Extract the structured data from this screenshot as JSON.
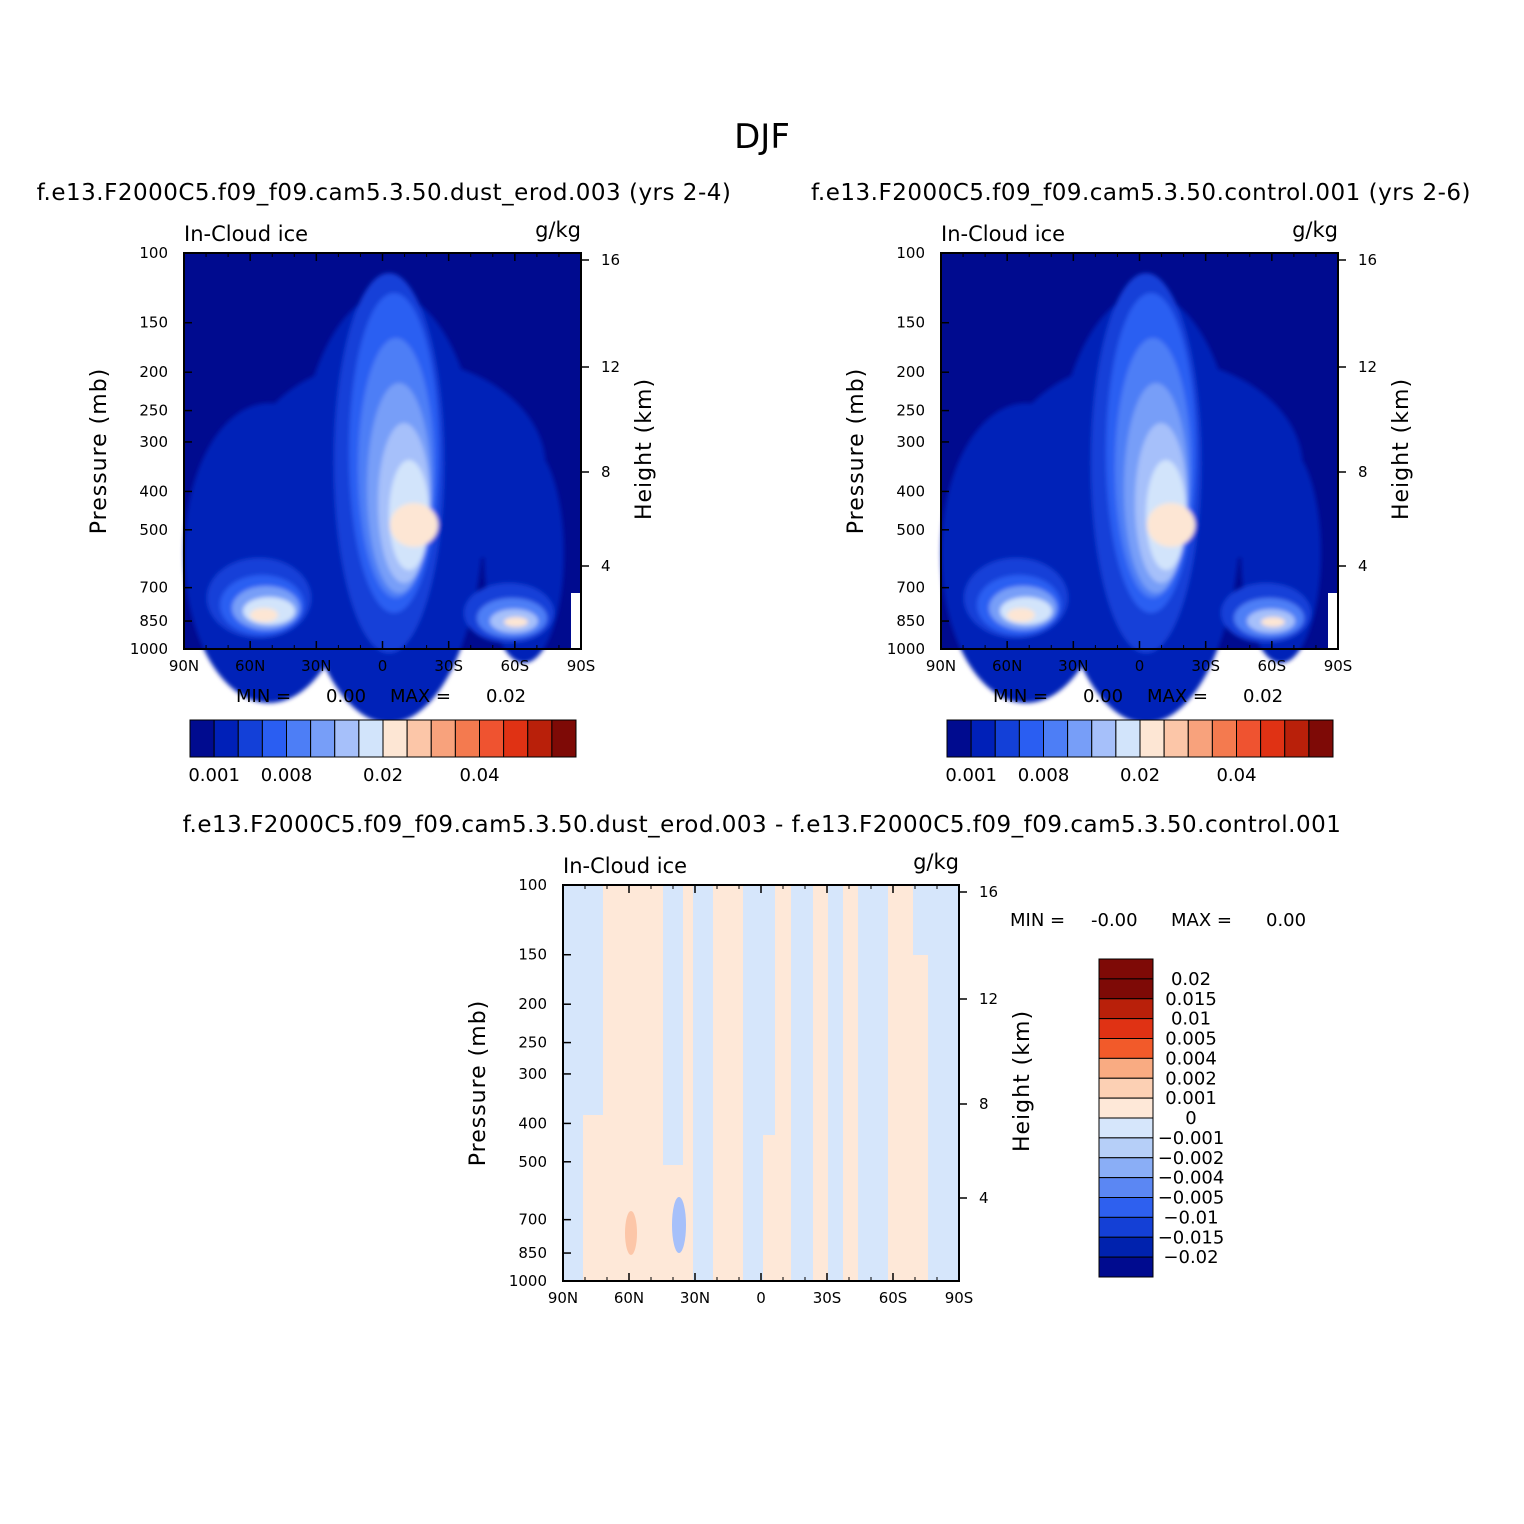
{
  "figure": {
    "title": "DJF"
  },
  "panels": [
    {
      "case": "f.e13.F2000C5.f09_f09.cam5.3.50.dust_erod.003 (yrs 2-4)",
      "var": "In-Cloud ice",
      "units": "g/kg",
      "ylabel": "Pressure (mb)",
      "y2label": "Height (km)",
      "min_label": "MIN =",
      "min_value": "0.00",
      "max_label": "MAX =",
      "max_value": "0.02"
    },
    {
      "case": "f.e13.F2000C5.f09_f09.cam5.3.50.control.001 (yrs 2-6)",
      "var": "In-Cloud ice",
      "units": "g/kg",
      "ylabel": "Pressure (mb)",
      "y2label": "Height (km)",
      "min_label": "MIN =",
      "min_value": "0.00",
      "max_label": "MAX =",
      "max_value": "0.02"
    },
    {
      "case": "f.e13.F2000C5.f09_f09.cam5.3.50.dust_erod.003 - f.e13.F2000C5.f09_f09.cam5.3.50.control.001",
      "var": "In-Cloud ice",
      "units": "g/kg",
      "ylabel": "Pressure (mb)",
      "y2label": "Height (km)",
      "min_label": "MIN =",
      "min_value": "-0.00",
      "max_label": "MAX =",
      "max_value": "0.00"
    }
  ],
  "chart_data": [
    {
      "type": "heatmap",
      "title": "In-Cloud ice",
      "x_ticks": [
        "90N",
        "60N",
        "30N",
        "0",
        "30S",
        "60S",
        "90S"
      ],
      "y_ticks": [
        "100",
        "150",
        "200",
        "250",
        "300",
        "400",
        "500",
        "700",
        "850",
        "1000"
      ],
      "y2_ticks": [
        "16",
        "12",
        "8",
        "4"
      ],
      "ylim": [
        1000,
        100
      ],
      "y_scale": "log",
      "colorbar_labels": [
        "0.001",
        "0.008",
        "0.02",
        "0.04"
      ],
      "colors": [
        "#000b8f",
        "#0020b8",
        "#1340d8",
        "#2a5ef2",
        "#4d7ef6",
        "#779ef8",
        "#a6c0fa",
        "#d2e4fb",
        "#fde6d4",
        "#fcc6a8",
        "#f8a27c",
        "#f47a4f",
        "#ef5330",
        "#e03214",
        "#b9200a",
        "#7e0a06"
      ],
      "features": [
        {
          "lat": "0-10S",
          "p_mb": 500,
          "value": 0.02
        },
        {
          "lat": "50N",
          "p_mb": 850,
          "value": 0.02
        },
        {
          "lat": "60S",
          "p_mb": 850,
          "value": 0.02
        }
      ],
      "min": "0.00",
      "max": "0.02"
    },
    {
      "type": "heatmap",
      "title": "In-Cloud ice",
      "x_ticks": [
        "90N",
        "60N",
        "30N",
        "0",
        "30S",
        "60S",
        "90S"
      ],
      "y_ticks": [
        "100",
        "150",
        "200",
        "250",
        "300",
        "400",
        "500",
        "700",
        "850",
        "1000"
      ],
      "y2_ticks": [
        "16",
        "12",
        "8",
        "4"
      ],
      "ylim": [
        1000,
        100
      ],
      "y_scale": "log",
      "colorbar_labels": [
        "0.001",
        "0.008",
        "0.02",
        "0.04"
      ],
      "min": "0.00",
      "max": "0.02"
    },
    {
      "type": "heatmap",
      "title": "In-Cloud ice",
      "x_ticks": [
        "90N",
        "60N",
        "30N",
        "0",
        "30S",
        "60S",
        "90S"
      ],
      "y_ticks": [
        "100",
        "150",
        "200",
        "250",
        "300",
        "400",
        "500",
        "700",
        "850",
        "1000"
      ],
      "y2_ticks": [
        "16",
        "12",
        "8",
        "4"
      ],
      "ylim": [
        1000,
        100
      ],
      "y_scale": "log",
      "colorbar_labels": [
        "0.02",
        "0.015",
        "0.01",
        "0.005",
        "0.004",
        "0.002",
        "0.001",
        "0",
        "−0.001",
        "−0.002",
        "−0.004",
        "−0.005",
        "−0.01",
        "−0.015",
        "−0.02"
      ],
      "colors": [
        "#7e0a06",
        "#b9200a",
        "#e03214",
        "#f25a2a",
        "#f9ab82",
        "#fcd0b4",
        "#fee8d8",
        "#d6e6fb",
        "#b6cff8",
        "#8aaef6",
        "#5b87f3",
        "#2e60ef",
        "#1440d6",
        "#0022ae",
        "#000b8f"
      ],
      "min": "-0.00",
      "max": "0.00"
    }
  ]
}
